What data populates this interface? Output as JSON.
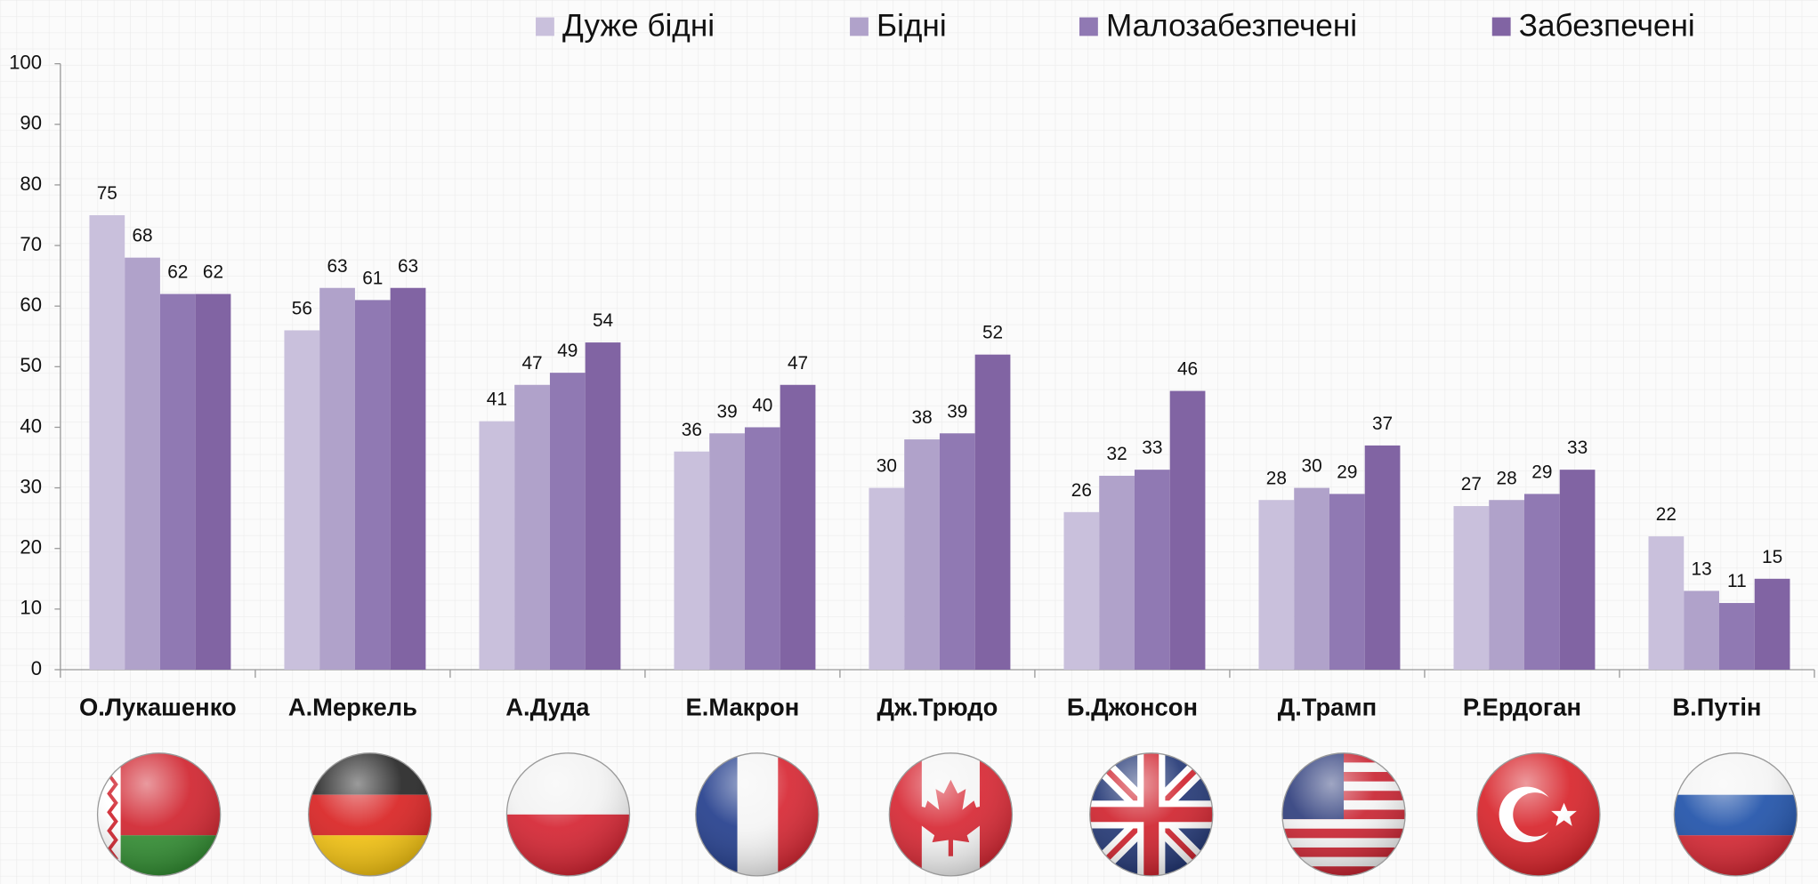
{
  "chart_data": {
    "type": "bar",
    "categories": [
      "О.Лукашенко",
      "А.Меркель",
      "А.Дуда",
      "Е.Макрон",
      "Дж.Трюдо",
      "Б.Джонсон",
      "Д.Трамп",
      "Р.Ердоган",
      "В.Путін"
    ],
    "series": [
      {
        "name": "Дуже бідні",
        "color": "#c9c0dc",
        "values": [
          75,
          56,
          41,
          36,
          30,
          26,
          28,
          27,
          22
        ]
      },
      {
        "name": "Бідні",
        "color": "#b0a2ca",
        "values": [
          68,
          63,
          47,
          39,
          38,
          32,
          30,
          28,
          13
        ]
      },
      {
        "name": "Малозабезпечені",
        "color": "#9079b3",
        "values": [
          62,
          61,
          49,
          40,
          39,
          33,
          29,
          29,
          11
        ]
      },
      {
        "name": "Забезпечені",
        "color": "#8164a3",
        "values": [
          62,
          63,
          54,
          47,
          52,
          46,
          37,
          33,
          15
        ]
      }
    ],
    "ylim": [
      0,
      100
    ],
    "yticks": [
      0,
      10,
      20,
      30,
      40,
      50,
      60,
      70,
      80,
      90,
      100
    ],
    "legend": "top"
  }
}
